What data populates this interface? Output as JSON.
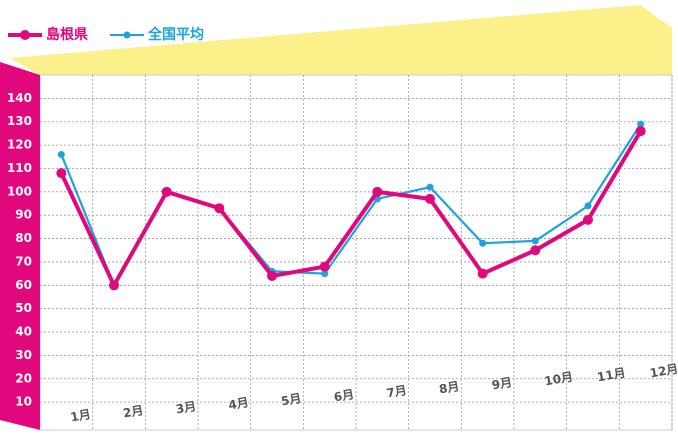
{
  "chart_data": {
    "type": "line",
    "categories": [
      "1月",
      "2月",
      "3月",
      "4月",
      "5月",
      "6月",
      "7月",
      "8月",
      "9月",
      "10月",
      "11月",
      "12月"
    ],
    "series": [
      {
        "name": "島根県",
        "color": "#e0087c",
        "values": [
          108,
          60,
          100,
          93,
          64,
          68,
          100,
          97,
          65,
          75,
          88,
          126
        ]
      },
      {
        "name": "全国平均",
        "color": "#1ea3dc",
        "values": [
          116,
          60,
          100,
          93,
          66,
          65,
          97,
          102,
          78,
          79,
          94,
          129
        ]
      }
    ],
    "ylim": [
      0,
      150
    ],
    "yticks": [
      10,
      20,
      30,
      40,
      50,
      60,
      70,
      80,
      90,
      100,
      110,
      120,
      130,
      140
    ],
    "grid": true
  }
}
